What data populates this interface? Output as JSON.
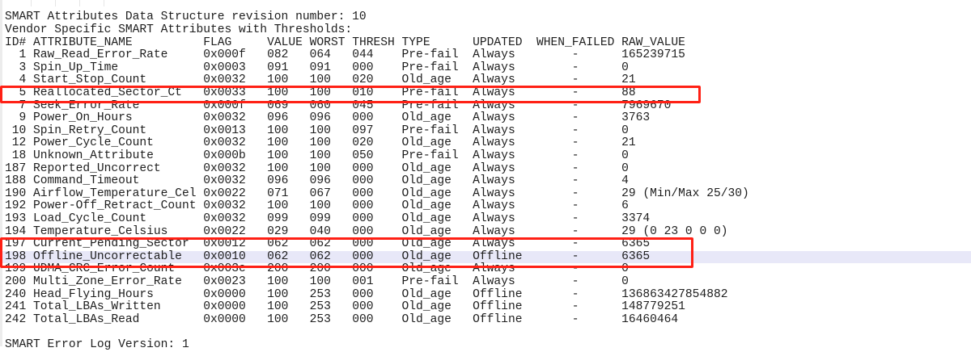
{
  "header_lines": [
    "SMART Attributes Data Structure revision number: 10",
    "Vendor Specific SMART Attributes with Thresholds:"
  ],
  "columns": [
    "ID#",
    "ATTRIBUTE_NAME",
    "FLAG",
    "VALUE",
    "WORST",
    "THRESH",
    "TYPE",
    "UPDATED",
    "WHEN_FAILED",
    "RAW_VALUE"
  ],
  "rows": [
    {
      "id": "1",
      "name": "Raw_Read_Error_Rate",
      "flag": "0x000f",
      "value": "082",
      "worst": "064",
      "thresh": "044",
      "type": "Pre-fail",
      "updated": "Always",
      "when_failed": "-",
      "raw": "165239715"
    },
    {
      "id": "3",
      "name": "Spin_Up_Time",
      "flag": "0x0003",
      "value": "091",
      "worst": "091",
      "thresh": "000",
      "type": "Pre-fail",
      "updated": "Always",
      "when_failed": "-",
      "raw": "0"
    },
    {
      "id": "4",
      "name": "Start_Stop_Count",
      "flag": "0x0032",
      "value": "100",
      "worst": "100",
      "thresh": "020",
      "type": "Old_age",
      "updated": "Always",
      "when_failed": "-",
      "raw": "21"
    },
    {
      "id": "5",
      "name": "Reallocated_Sector_Ct",
      "flag": "0x0033",
      "value": "100",
      "worst": "100",
      "thresh": "010",
      "type": "Pre-fail",
      "updated": "Always",
      "when_failed": "-",
      "raw": "88",
      "highlighted_box": 1
    },
    {
      "id": "7",
      "name": "Seek_Error_Rate",
      "flag": "0x000f",
      "value": "069",
      "worst": "060",
      "thresh": "045",
      "type": "Pre-fail",
      "updated": "Always",
      "when_failed": "-",
      "raw": "7969670"
    },
    {
      "id": "9",
      "name": "Power_On_Hours",
      "flag": "0x0032",
      "value": "096",
      "worst": "096",
      "thresh": "000",
      "type": "Old_age",
      "updated": "Always",
      "when_failed": "-",
      "raw": "3763"
    },
    {
      "id": "10",
      "name": "Spin_Retry_Count",
      "flag": "0x0013",
      "value": "100",
      "worst": "100",
      "thresh": "097",
      "type": "Pre-fail",
      "updated": "Always",
      "when_failed": "-",
      "raw": "0"
    },
    {
      "id": "12",
      "name": "Power_Cycle_Count",
      "flag": "0x0032",
      "value": "100",
      "worst": "100",
      "thresh": "020",
      "type": "Old_age",
      "updated": "Always",
      "when_failed": "-",
      "raw": "21"
    },
    {
      "id": "18",
      "name": "Unknown_Attribute",
      "flag": "0x000b",
      "value": "100",
      "worst": "100",
      "thresh": "050",
      "type": "Pre-fail",
      "updated": "Always",
      "when_failed": "-",
      "raw": "0"
    },
    {
      "id": "187",
      "name": "Reported_Uncorrect",
      "flag": "0x0032",
      "value": "100",
      "worst": "100",
      "thresh": "000",
      "type": "Old_age",
      "updated": "Always",
      "when_failed": "-",
      "raw": "0"
    },
    {
      "id": "188",
      "name": "Command_Timeout",
      "flag": "0x0032",
      "value": "096",
      "worst": "096",
      "thresh": "000",
      "type": "Old_age",
      "updated": "Always",
      "when_failed": "-",
      "raw": "4"
    },
    {
      "id": "190",
      "name": "Airflow_Temperature_Cel",
      "flag": "0x0022",
      "value": "071",
      "worst": "067",
      "thresh": "000",
      "type": "Old_age",
      "updated": "Always",
      "when_failed": "-",
      "raw": "29 (Min/Max 25/30)"
    },
    {
      "id": "192",
      "name": "Power-Off_Retract_Count",
      "flag": "0x0032",
      "value": "100",
      "worst": "100",
      "thresh": "000",
      "type": "Old_age",
      "updated": "Always",
      "when_failed": "-",
      "raw": "6"
    },
    {
      "id": "193",
      "name": "Load_Cycle_Count",
      "flag": "0x0032",
      "value": "099",
      "worst": "099",
      "thresh": "000",
      "type": "Old_age",
      "updated": "Always",
      "when_failed": "-",
      "raw": "3374"
    },
    {
      "id": "194",
      "name": "Temperature_Celsius",
      "flag": "0x0022",
      "value": "029",
      "worst": "040",
      "thresh": "000",
      "type": "Old_age",
      "updated": "Always",
      "when_failed": "-",
      "raw": "29 (0 23 0 0 0)"
    },
    {
      "id": "197",
      "name": "Current_Pending_Sector",
      "flag": "0x0012",
      "value": "062",
      "worst": "062",
      "thresh": "000",
      "type": "Old_age",
      "updated": "Always",
      "when_failed": "-",
      "raw": "6365",
      "highlighted_box": 2
    },
    {
      "id": "198",
      "name": "Offline_Uncorrectable",
      "flag": "0x0010",
      "value": "062",
      "worst": "062",
      "thresh": "000",
      "type": "Old_age",
      "updated": "Offline",
      "when_failed": "-",
      "raw": "6365",
      "highlighted_box": 2,
      "selected": true
    },
    {
      "id": "199",
      "name": "UDMA_CRC_Error_Count",
      "flag": "0x003e",
      "value": "200",
      "worst": "200",
      "thresh": "000",
      "type": "Old_age",
      "updated": "Always",
      "when_failed": "-",
      "raw": "0"
    },
    {
      "id": "200",
      "name": "Multi_Zone_Error_Rate",
      "flag": "0x0023",
      "value": "100",
      "worst": "100",
      "thresh": "001",
      "type": "Pre-fail",
      "updated": "Always",
      "when_failed": "-",
      "raw": "0"
    },
    {
      "id": "240",
      "name": "Head_Flying_Hours",
      "flag": "0x0000",
      "value": "100",
      "worst": "253",
      "thresh": "000",
      "type": "Old_age",
      "updated": "Offline",
      "when_failed": "-",
      "raw": "136863427854882"
    },
    {
      "id": "241",
      "name": "Total_LBAs_Written",
      "flag": "0x0000",
      "value": "100",
      "worst": "253",
      "thresh": "000",
      "type": "Old_age",
      "updated": "Offline",
      "when_failed": "-",
      "raw": "148779251"
    },
    {
      "id": "242",
      "name": "Total_LBAs_Read",
      "flag": "0x0000",
      "value": "100",
      "worst": "253",
      "thresh": "000",
      "type": "Old_age",
      "updated": "Offline",
      "when_failed": "-",
      "raw": "16460464"
    }
  ],
  "footer_line": "SMART Error Log Version: 1",
  "colors": {
    "highlight_box": "#ff2015",
    "selected_line": "#e8e8f8",
    "text": "#1e1e1e"
  }
}
